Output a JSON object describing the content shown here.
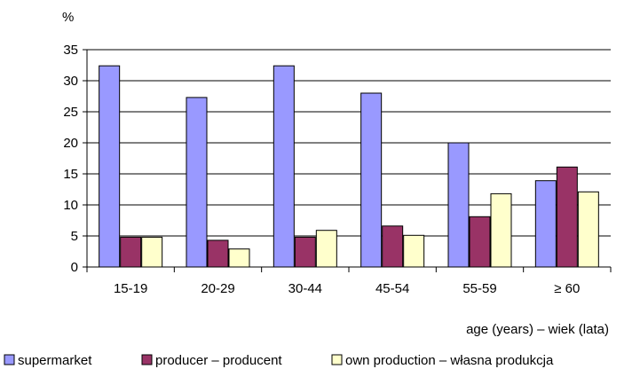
{
  "chart_data": {
    "type": "bar",
    "title": "",
    "ylabel": "%",
    "xlabel": "age (years) – wiek (lata)",
    "categories": [
      "15-19",
      "20-29",
      "30-44",
      "45-54",
      "55-59",
      "≥ 60"
    ],
    "ylim": [
      0,
      35
    ],
    "yticks": [
      0,
      5,
      10,
      15,
      20,
      25,
      30,
      35
    ],
    "grid": true,
    "legend_position": "bottom",
    "series": [
      {
        "name": "supermarket",
        "color": "#9999ff",
        "values": [
          32.4,
          27.3,
          32.4,
          28.0,
          20.0,
          13.9
        ]
      },
      {
        "name": "producer – producent",
        "color": "#993366",
        "values": [
          4.8,
          4.3,
          4.8,
          6.6,
          8.1,
          16.1
        ]
      },
      {
        "name": "own production – własna produkcja",
        "color": "#ffffcc",
        "values": [
          4.8,
          2.9,
          5.9,
          5.1,
          11.8,
          12.1
        ]
      }
    ]
  }
}
